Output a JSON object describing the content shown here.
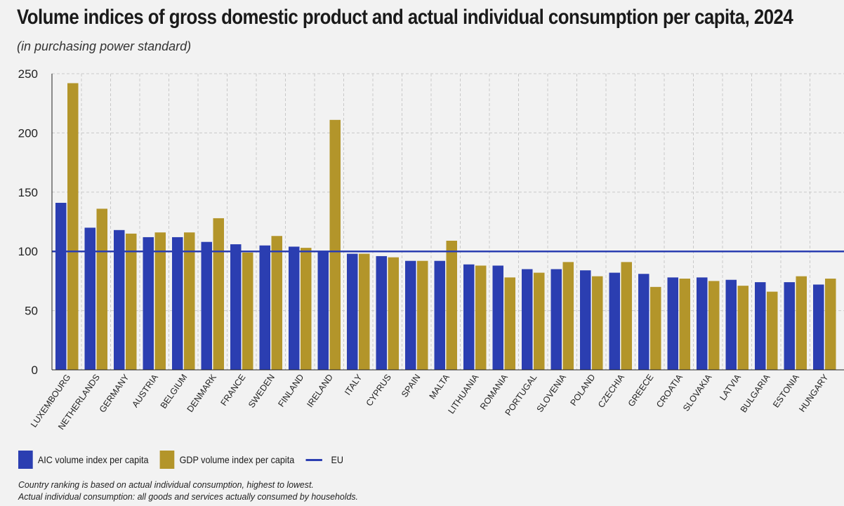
{
  "title": "Volume indices of gross domestic product and actual individual consumption per capita, 2024",
  "subtitle": "(in purchasing power standard)",
  "legend": {
    "aic": "AIC volume index per capita",
    "gdp": "GDP volume index per capita",
    "eu": "EU"
  },
  "notes": {
    "line1": "Country ranking is based on actual individual consumption, highest to lowest.",
    "line2": "Actual individual consumption: all goods and services actually consumed by households."
  },
  "colors": {
    "aic": "#2b3eb1",
    "gdp": "#b3952a",
    "eu": "#2b3eb1",
    "grid": "#c9c9c9"
  },
  "chart_data": {
    "type": "bar",
    "title": "Volume indices of gross domestic product and actual individual consumption per capita, 2024",
    "subtitle": "(in purchasing power standard)",
    "categories": [
      "LUXEMBOURG",
      "NETHERLANDS",
      "GERMANY",
      "AUSTRIA",
      "BELGIUM",
      "DENMARK",
      "FRANCE",
      "SWEDEN",
      "FINLAND",
      "IRELAND",
      "ITALY",
      "CYPRUS",
      "SPAIN",
      "MALTA",
      "LITHUANIA",
      "ROMANIA",
      "PORTUGAL",
      "SLOVENIA",
      "POLAND",
      "CZECHIA",
      "GREECE",
      "CROATIA",
      "SLOVAKIA",
      "LATVIA",
      "BULGARIA",
      "ESTONIA",
      "HUNGARY"
    ],
    "series": [
      {
        "name": "AIC volume index per capita",
        "values": [
          141,
          120,
          118,
          112,
          112,
          108,
          106,
          105,
          104,
          100,
          98,
          96,
          92,
          92,
          89,
          88,
          85,
          85,
          84,
          82,
          81,
          78,
          78,
          76,
          74,
          74,
          72
        ]
      },
      {
        "name": "GDP volume index per capita",
        "values": [
          242,
          136,
          115,
          116,
          116,
          128,
          99,
          113,
          103,
          211,
          98,
          95,
          92,
          109,
          88,
          78,
          82,
          91,
          79,
          91,
          70,
          77,
          75,
          71,
          66,
          79,
          77
        ]
      }
    ],
    "reference_line": {
      "name": "EU",
      "value": 100
    },
    "ylim": [
      0,
      250
    ],
    "yticks": [
      0,
      50,
      100,
      150,
      200,
      250
    ],
    "xlabel": "",
    "ylabel": "",
    "grid": true,
    "legend_position": "bottom-left"
  }
}
